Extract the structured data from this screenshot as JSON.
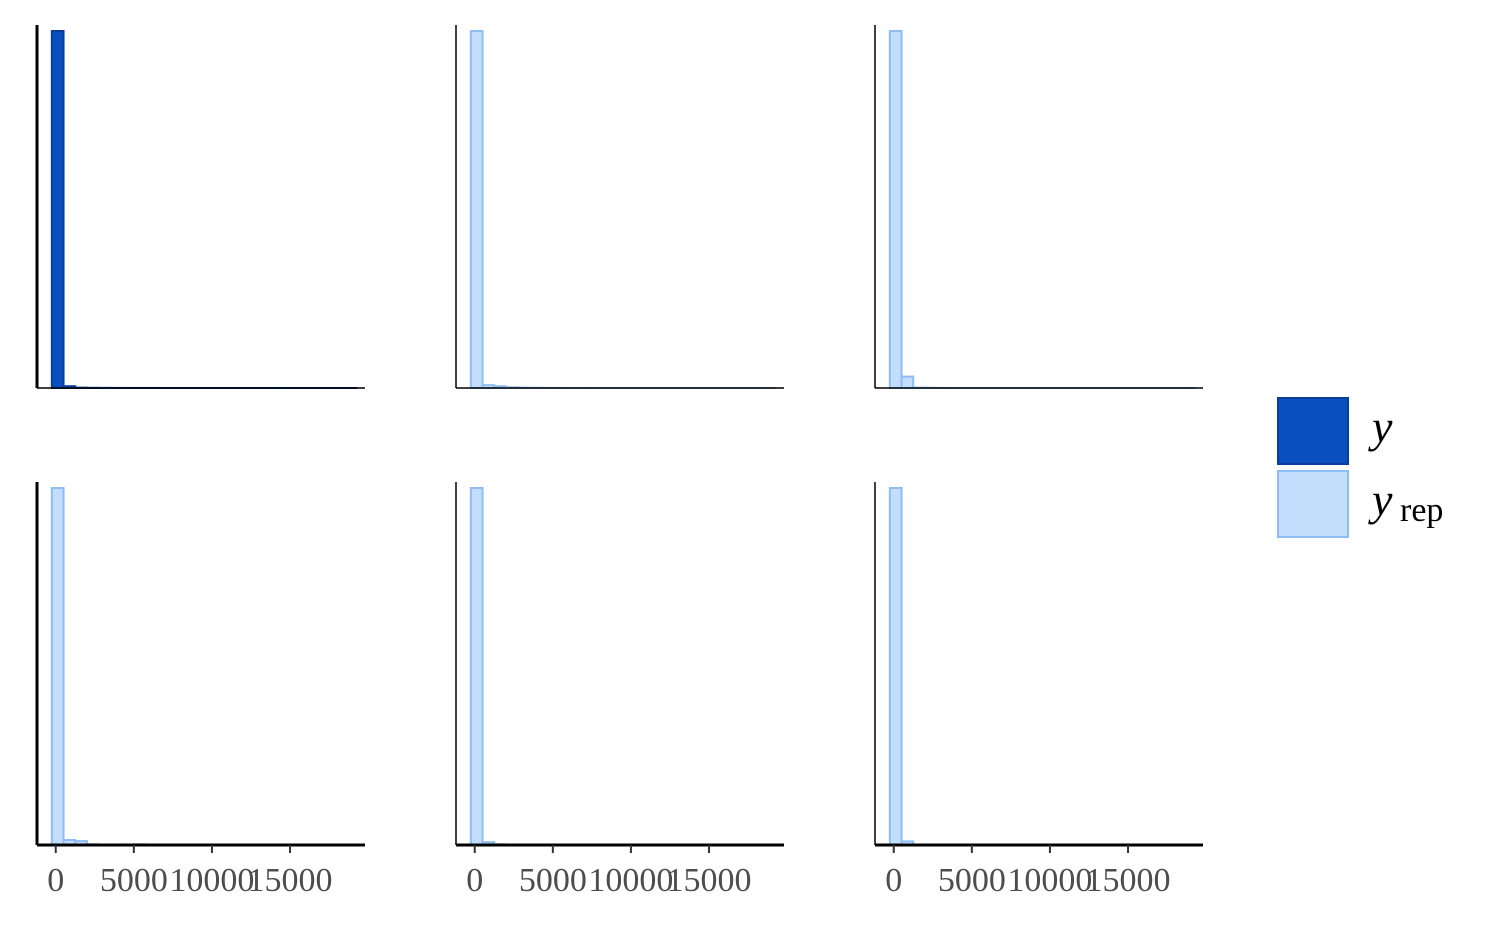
{
  "chart_data": {
    "type": "bar",
    "layout": "facet grid, 2 rows x 3 columns, shared x axis",
    "x_range": [
      -1200,
      19800
    ],
    "x_ticks": [
      0,
      5000,
      10000,
      15000
    ],
    "x_tick_labels": [
      "0",
      "5000",
      "10000",
      "15000"
    ],
    "y_axis_labels": "none",
    "grid": false,
    "bin_edges": [
      -250,
      500,
      1250,
      2000,
      2750,
      3500,
      4250,
      5000,
      5750,
      6500,
      7250,
      8000,
      8750,
      9500,
      10250,
      11000,
      11750,
      12500,
      13250,
      14000,
      14750,
      15500,
      16250,
      17000,
      17750,
      18500,
      19250
    ],
    "panels": [
      {
        "series": "y",
        "color": "#0a4fbf",
        "edge": "#083e9a",
        "counts": [
          1000,
          5,
          1,
          0.5,
          0.3,
          0.2,
          0.1,
          0.1,
          0.1,
          0.05,
          0.05,
          0.05,
          0.05,
          0.05,
          0.05,
          0.05,
          0.05,
          0.05,
          0.05,
          0.05,
          0.05,
          0.05,
          0.05,
          0.05,
          0.05,
          0.05
        ]
      },
      {
        "series": "y_rep",
        "color": "#c3defd",
        "edge": "#8ebcf3",
        "counts": [
          1000,
          8,
          5,
          2,
          1,
          0.5,
          0.3,
          0.2,
          0.1,
          0.1,
          0.1,
          0.1,
          0.05,
          0.05,
          0.05,
          0.05,
          0.05,
          0.05,
          0.05,
          0.05,
          0.05,
          0.05,
          0.05,
          0.05,
          0.05,
          0.05
        ]
      },
      {
        "series": "y_rep",
        "color": "#c3defd",
        "edge": "#8ebcf3",
        "counts": [
          1000,
          32,
          1,
          0.5,
          0.2,
          0.1,
          0.1,
          0.05,
          0.05,
          0.05,
          0.05,
          0.05,
          0.05,
          0.05,
          0.05,
          0.05,
          0.05,
          0.05,
          0.05,
          0.05,
          0.05,
          0.05,
          0.05,
          0.05,
          0.05,
          0.05
        ]
      },
      {
        "series": "y_rep",
        "color": "#c3defd",
        "edge": "#8ebcf3",
        "counts": [
          1000,
          14,
          11,
          2,
          1,
          1,
          1.5,
          2,
          1,
          1,
          0.5,
          0.5,
          0.5,
          0.5,
          0.5,
          0.5,
          0.5,
          0.5,
          0.5,
          1,
          1,
          0.5,
          0.5,
          0.5,
          0.5,
          1
        ]
      },
      {
        "series": "y_rep",
        "color": "#c3defd",
        "edge": "#8ebcf3",
        "counts": [
          1000,
          8,
          2,
          1,
          0.5,
          0.3,
          0.2,
          0.1,
          0.1,
          0.1,
          0.1,
          0.1,
          0.1,
          0.05,
          0.05,
          0.05,
          0.05,
          0.05,
          0.05,
          0.05,
          0.05,
          0.05,
          0.05,
          0.05,
          0.05,
          0.05
        ]
      },
      {
        "series": "y_rep",
        "color": "#c3defd",
        "edge": "#8ebcf3",
        "counts": [
          1000,
          10,
          1,
          0.5,
          0.3,
          0.2,
          0.1,
          0.1,
          0.1,
          0.1,
          0.05,
          0.05,
          0.05,
          0.05,
          0.05,
          0.05,
          0.05,
          0.05,
          0.05,
          0.05,
          0.05,
          0.05,
          0.05,
          0.05,
          0.05,
          0.05
        ]
      }
    ],
    "y_max": [
      1000,
      1000,
      1000,
      1000,
      1000,
      1000
    ],
    "legend": {
      "placement": "right",
      "entries": [
        {
          "key": "y",
          "label": "y",
          "sub": "",
          "color": "#0a4fbf",
          "edge": "#083e9a"
        },
        {
          "key": "y_rep",
          "label": "y",
          "sub": "rep",
          "color": "#c3defd",
          "edge": "#8ebcf3"
        }
      ]
    }
  }
}
